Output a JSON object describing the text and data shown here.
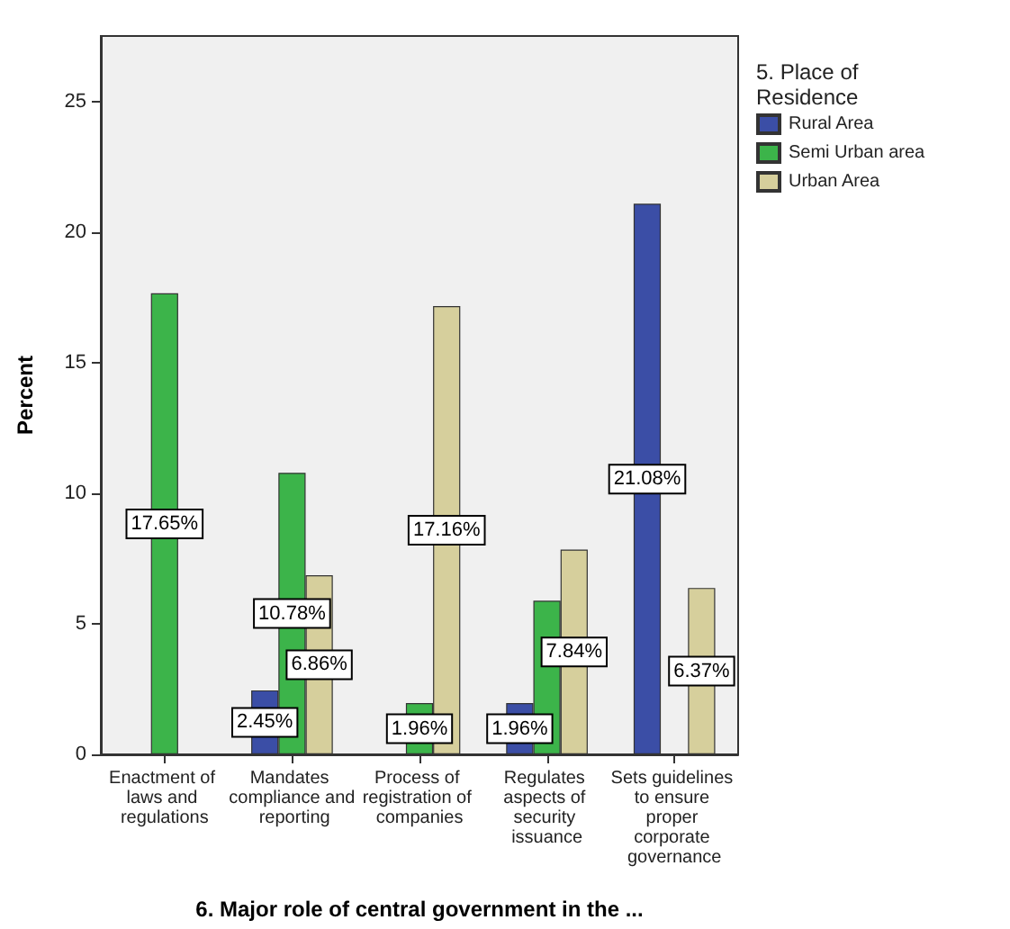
{
  "chart_data": {
    "type": "bar",
    "xlabel": "6. Major role of central government in the ...",
    "ylabel": "Percent",
    "legend_title": "5. Place of Residence",
    "categories": [
      "Enactment of laws and regulations",
      "Mandates compliance and reporting",
      "Process of registration of companies",
      "Regulates aspects of security issuance",
      "Sets guidelines to ensure proper corporate governance"
    ],
    "series": [
      {
        "name": "Rural Area",
        "color": "#3b4ea6",
        "values": [
          null,
          2.45,
          null,
          1.96,
          21.08
        ],
        "value_labels": [
          null,
          "2.45%",
          null,
          "1.96%",
          "21.08%"
        ]
      },
      {
        "name": "Semi Urban area",
        "color": "#3cb44a",
        "values": [
          17.65,
          10.78,
          1.96,
          5.88,
          null
        ],
        "value_labels": [
          "17.65%",
          "10.78%",
          "1.96%",
          null,
          null
        ]
      },
      {
        "name": "Urban Area",
        "color": "#d6cf9c",
        "values": [
          null,
          6.86,
          17.16,
          7.84,
          6.37
        ],
        "value_labels": [
          null,
          "6.86%",
          "17.16%",
          "7.84%",
          "6.37%"
        ]
      }
    ],
    "ylim": [
      0,
      27.5
    ],
    "yticks": [
      0,
      5,
      10,
      15,
      20,
      25
    ],
    "grid": false,
    "legend": "right"
  }
}
